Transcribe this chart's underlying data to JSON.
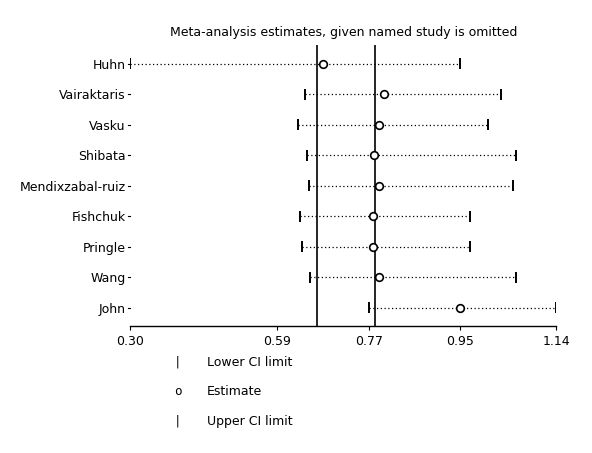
{
  "title": "Meta-analysis estimates, given named study is omitted",
  "studies": [
    "Huhn",
    "Vairaktaris",
    "Vasku",
    "Shibata",
    "Mendixzabal-ruiz",
    "Fishchuk",
    "Pringle",
    "Wang",
    "John"
  ],
  "lower": [
    0.3,
    0.645,
    0.63,
    0.648,
    0.652,
    0.634,
    0.638,
    0.655,
    0.77
  ],
  "estimate": [
    0.68,
    0.8,
    0.79,
    0.78,
    0.79,
    0.778,
    0.778,
    0.79,
    0.95
  ],
  "upper": [
    0.95,
    1.03,
    1.005,
    1.06,
    1.055,
    0.97,
    0.97,
    1.06,
    1.14
  ],
  "vline1": 0.668,
  "vline2": 0.783,
  "xlim": [
    0.3,
    1.14
  ],
  "xticks": [
    0.3,
    0.59,
    0.77,
    0.95,
    1.14
  ],
  "xticklabels": [
    "0.30",
    "0.59",
    "0.77",
    "0.95",
    "1.14"
  ],
  "bg_color": "#ffffff",
  "line_color": "#000000"
}
